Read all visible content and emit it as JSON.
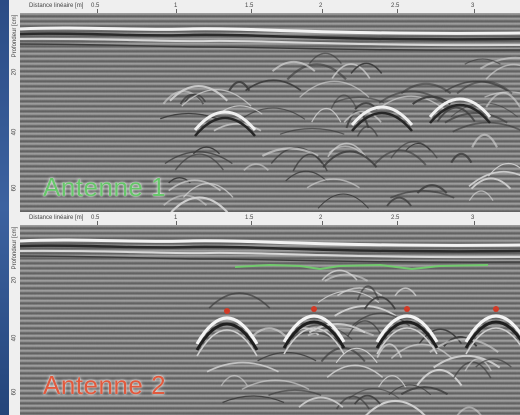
{
  "colors": {
    "antenne1": "#67c76b",
    "antenne2": "#e15a3e",
    "hyperbola_apex": "#d23a26",
    "layer_line": "#6fd26a"
  },
  "panels": [
    {
      "xaxis_label": "Distance linéaire [m]",
      "xticks": [
        "0.5",
        "1",
        "1.5",
        "2",
        "2.5",
        "3"
      ],
      "yaxis_label": "Profondeur [cm]",
      "yticks": [
        "20",
        "40",
        "60"
      ],
      "label": "Antenne 1"
    },
    {
      "xaxis_label": "Distance linéaire [m]",
      "xticks": [
        "0.5",
        "1",
        "1.5",
        "2",
        "2.5",
        "3"
      ],
      "yaxis_label": "Profondeur [cm]",
      "yticks": [
        "20",
        "40",
        "60"
      ],
      "label": "Antenne 2"
    }
  ]
}
